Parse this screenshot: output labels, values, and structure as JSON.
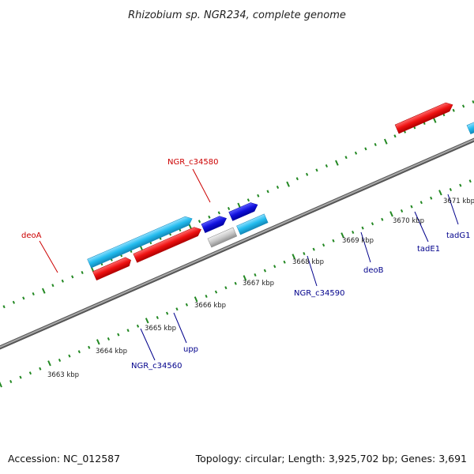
{
  "title": "Rhizobium sp. NGR234, complete genome",
  "footer": {
    "accession": "Accession: NC_012587",
    "summary": "Topology: circular; Length: 3,925,702 bp; Genes: 3,691"
  },
  "colors": {
    "red": "#ee1111",
    "blue": "#1010dd",
    "cyan": "#22bbee",
    "teal": "#22cccc",
    "lime": "#99ee22",
    "gray": "#c8c8c8",
    "tick": "#228822",
    "backbone": "#888888",
    "label_red": "#cc0000",
    "label_blue": "#00008b"
  },
  "kbp_labels": [
    "3663 kbp",
    "3664 kbp",
    "3665 kbp",
    "3666 kbp",
    "3667 kbp",
    "3668 kbp",
    "3669 kbp",
    "3670 kbp",
    "3671 kbp"
  ],
  "gene_labels": {
    "deoA": "deoA",
    "NGR_c34580": "NGR_c34580",
    "NGR_c34560": "NGR_c34560",
    "upp": "upp",
    "NGR_c34590": "NGR_c34590",
    "deoB": "deoB",
    "tadE1": "tadE1",
    "tadG1": "tadG1"
  }
}
